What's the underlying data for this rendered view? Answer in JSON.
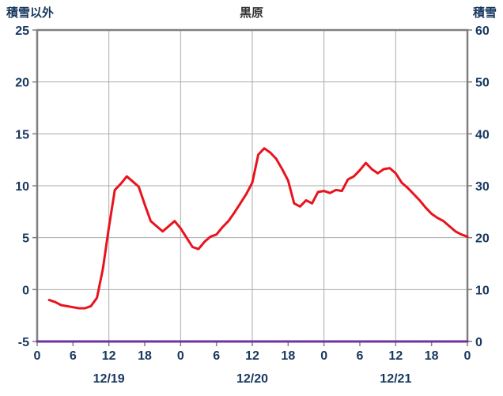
{
  "page": {
    "title": "黒原",
    "left_axis_label": "積雪以外",
    "right_axis_label": "積雪"
  },
  "chart_data": {
    "type": "line",
    "title": "黒原",
    "left_axis": {
      "label": "積雪以外",
      "min": -5,
      "max": 25,
      "ticks": [
        25,
        20,
        15,
        10,
        5,
        0,
        -5
      ]
    },
    "right_axis": {
      "label": "積雪",
      "min": 0,
      "max": 60,
      "ticks": [
        60,
        50,
        40,
        30,
        20,
        10,
        0
      ]
    },
    "x_axis": {
      "min": 0,
      "max": 72,
      "tick_values": [
        0,
        6,
        12,
        18,
        24,
        30,
        36,
        42,
        48,
        54,
        60,
        66,
        72
      ],
      "tick_labels": [
        "0",
        "6",
        "12",
        "18",
        "0",
        "6",
        "12",
        "18",
        "0",
        "6",
        "12",
        "18",
        "0"
      ],
      "date_labels": [
        {
          "label": "12/19",
          "hour": 12
        },
        {
          "label": "12/20",
          "hour": 36
        },
        {
          "label": "12/21",
          "hour": 60
        }
      ],
      "v_gridline_hours": [
        12,
        24,
        36,
        48,
        60
      ]
    },
    "h_gridline_values": [
      0,
      5,
      10,
      15,
      20
    ],
    "grid": true,
    "legend": "none",
    "colors": {
      "grid": "#ababab",
      "border": "#7f7f7f",
      "label": "#17375e",
      "title": "#333333",
      "series_left": "#e8131d",
      "series_right": "#7030a0"
    },
    "series": [
      {
        "name": "積雪以外",
        "axis": "left",
        "color": "#e8131d",
        "width": 3,
        "points": [
          [
            2,
            -1.0
          ],
          [
            3,
            -1.2
          ],
          [
            4,
            -1.5
          ],
          [
            5,
            -1.6
          ],
          [
            6,
            -1.7
          ],
          [
            7,
            -1.8
          ],
          [
            8,
            -1.8
          ],
          [
            9,
            -1.6
          ],
          [
            10,
            -0.8
          ],
          [
            11,
            2.0
          ],
          [
            12,
            6.0
          ],
          [
            13,
            9.6
          ],
          [
            14,
            10.2
          ],
          [
            15,
            10.9
          ],
          [
            16,
            10.4
          ],
          [
            17,
            9.9
          ],
          [
            18,
            8.2
          ],
          [
            19,
            6.6
          ],
          [
            20,
            6.1
          ],
          [
            21,
            5.6
          ],
          [
            22,
            6.1
          ],
          [
            23,
            6.6
          ],
          [
            24,
            5.9
          ],
          [
            25,
            5.0
          ],
          [
            26,
            4.1
          ],
          [
            27,
            3.9
          ],
          [
            28,
            4.6
          ],
          [
            29,
            5.1
          ],
          [
            30,
            5.3
          ],
          [
            31,
            6.0
          ],
          [
            32,
            6.6
          ],
          [
            33,
            7.4
          ],
          [
            34,
            8.3
          ],
          [
            35,
            9.2
          ],
          [
            36,
            10.3
          ],
          [
            37,
            13.0
          ],
          [
            38,
            13.6
          ],
          [
            39,
            13.2
          ],
          [
            40,
            12.6
          ],
          [
            41,
            11.6
          ],
          [
            42,
            10.5
          ],
          [
            43,
            8.3
          ],
          [
            44,
            8.0
          ],
          [
            45,
            8.6
          ],
          [
            46,
            8.3
          ],
          [
            47,
            9.4
          ],
          [
            48,
            9.5
          ],
          [
            49,
            9.3
          ],
          [
            50,
            9.6
          ],
          [
            51,
            9.5
          ],
          [
            52,
            10.6
          ],
          [
            53,
            10.9
          ],
          [
            54,
            11.5
          ],
          [
            55,
            12.2
          ],
          [
            56,
            11.6
          ],
          [
            57,
            11.2
          ],
          [
            58,
            11.6
          ],
          [
            59,
            11.7
          ],
          [
            60,
            11.2
          ],
          [
            61,
            10.3
          ],
          [
            62,
            9.8
          ],
          [
            63,
            9.2
          ],
          [
            64,
            8.6
          ],
          [
            65,
            7.9
          ],
          [
            66,
            7.3
          ],
          [
            67,
            6.9
          ],
          [
            68,
            6.6
          ],
          [
            69,
            6.1
          ],
          [
            70,
            5.6
          ],
          [
            71,
            5.3
          ],
          [
            72,
            5.1
          ]
        ]
      },
      {
        "name": "積雪",
        "axis": "right",
        "color": "#7030a0",
        "width": 3,
        "points": [
          [
            0,
            0
          ],
          [
            72,
            0
          ]
        ]
      }
    ]
  }
}
